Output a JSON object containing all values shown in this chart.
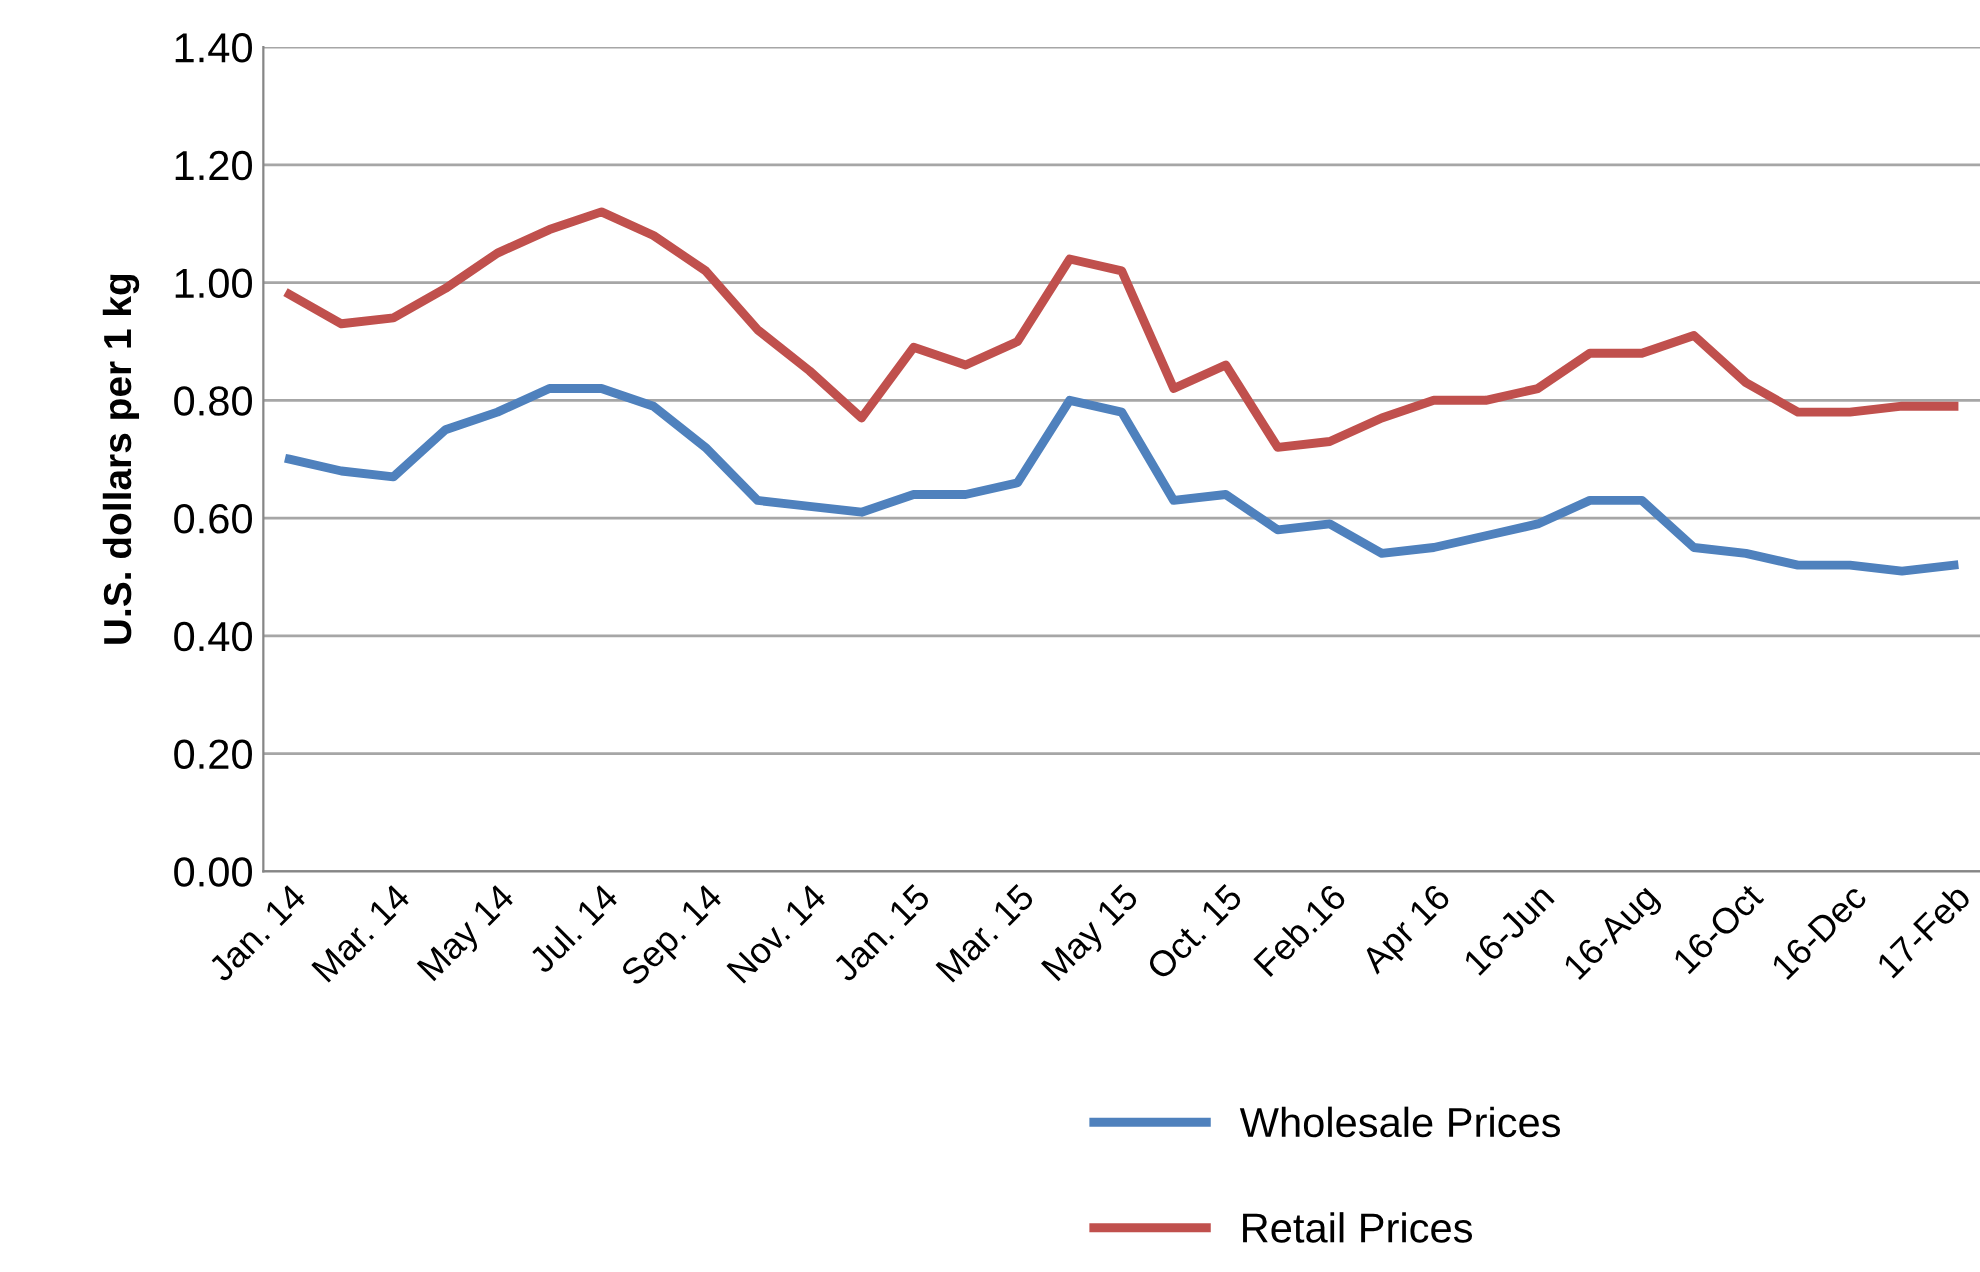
{
  "chart_data": {
    "type": "line",
    "ylabel": "U.S. dollars per 1 kg",
    "categories": [
      "Jan. 14",
      null,
      "Mar. 14",
      null,
      "May 14",
      null,
      "Jul. 14",
      null,
      "Sep. 14",
      null,
      "Nov. 14",
      null,
      "Jan. 15",
      null,
      "Mar. 15",
      null,
      "May 15",
      null,
      "Oct. 15",
      null,
      "Feb.16",
      null,
      "Apr 16",
      null,
      "16-Jun",
      null,
      "16-Aug",
      null,
      "16-Oct",
      null,
      "16-Dec",
      null,
      "17-Feb"
    ],
    "series": [
      {
        "name": "Wholesale Prices",
        "color": "#4f81bd",
        "values": [
          0.7,
          0.68,
          0.67,
          0.75,
          0.78,
          0.82,
          0.82,
          0.79,
          0.72,
          0.63,
          0.62,
          0.61,
          0.64,
          0.64,
          0.66,
          0.8,
          0.78,
          0.63,
          0.64,
          0.58,
          0.59,
          0.54,
          0.55,
          0.57,
          0.59,
          0.63,
          0.63,
          0.55,
          0.54,
          0.52,
          0.52,
          0.51,
          0.52
        ]
      },
      {
        "name": "Retail Prices",
        "color": "#c0504d",
        "values": [
          0.98,
          0.93,
          0.94,
          0.99,
          1.05,
          1.09,
          1.12,
          1.08,
          1.02,
          0.92,
          0.85,
          0.77,
          0.89,
          0.86,
          0.9,
          1.04,
          1.02,
          0.82,
          0.86,
          0.72,
          0.73,
          0.77,
          0.8,
          0.8,
          0.82,
          0.88,
          0.88,
          0.91,
          0.83,
          0.78,
          0.78,
          0.79,
          0.79
        ]
      }
    ],
    "ylim": [
      0,
      1.4
    ],
    "yticks": [
      {
        "value": 0,
        "label": "0.00"
      },
      {
        "value": 0.2,
        "label": "0.20"
      },
      {
        "value": 0.4,
        "label": "0.40"
      },
      {
        "value": 0.6,
        "label": "0.60"
      },
      {
        "value": 0.8,
        "label": "0.80"
      },
      {
        "value": 1.0,
        "label": "1.00"
      },
      {
        "value": 1.2,
        "label": "1.20"
      },
      {
        "value": 1.4,
        "label": "1.40"
      }
    ],
    "grid": "y",
    "legend": "bottom",
    "marker": "none",
    "line_style": "solid"
  }
}
